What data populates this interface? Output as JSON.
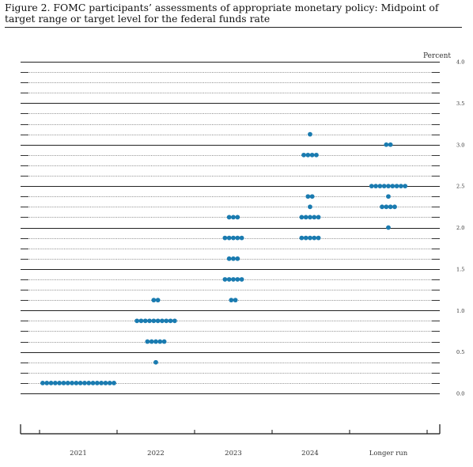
{
  "figure": {
    "title": "Figure 2.  FOMC participants’ assessments of appropriate monetary policy:  Midpoint of target range or target level for the federal funds rate"
  },
  "chart_data": {
    "type": "scatter",
    "ylabel": "Percent",
    "ylim": [
      0.0,
      4.0
    ],
    "ytick_labels": [
      "0.0",
      "0.5",
      "1.0",
      "1.5",
      "2.0",
      "2.5",
      "3.0",
      "3.5",
      "4.0"
    ],
    "categories": [
      "2021",
      "2022",
      "2023",
      "2024",
      "Longer run"
    ],
    "dot_color": "#1a7bb0",
    "grid": "solid lines at whole percentages and half percentages, dotted lines at eighths",
    "dot_rows": [
      {
        "category": "2021",
        "value": 0.125,
        "count": 18
      },
      {
        "category": "2022",
        "value": 0.375,
        "count": 1
      },
      {
        "category": "2022",
        "value": 0.625,
        "count": 5
      },
      {
        "category": "2022",
        "value": 0.875,
        "count": 10
      },
      {
        "category": "2022",
        "value": 1.125,
        "count": 2
      },
      {
        "category": "2023",
        "value": 1.125,
        "count": 2
      },
      {
        "category": "2023",
        "value": 1.375,
        "count": 5
      },
      {
        "category": "2023",
        "value": 1.625,
        "count": 3
      },
      {
        "category": "2023",
        "value": 1.875,
        "count": 5
      },
      {
        "category": "2023",
        "value": 2.125,
        "count": 3
      },
      {
        "category": "2024",
        "value": 1.875,
        "count": 5
      },
      {
        "category": "2024",
        "value": 2.125,
        "count": 5
      },
      {
        "category": "2024",
        "value": 2.25,
        "count": 1
      },
      {
        "category": "2024",
        "value": 2.375,
        "count": 2
      },
      {
        "category": "2024",
        "value": 2.875,
        "count": 4
      },
      {
        "category": "2024",
        "value": 3.125,
        "count": 1
      },
      {
        "category": "Longer run",
        "value": 2.0,
        "count": 1
      },
      {
        "category": "Longer run",
        "value": 2.25,
        "count": 4
      },
      {
        "category": "Longer run",
        "value": 2.375,
        "count": 1
      },
      {
        "category": "Longer run",
        "value": 2.5,
        "count": 9
      },
      {
        "category": "Longer run",
        "value": 3.0,
        "count": 2
      }
    ]
  }
}
